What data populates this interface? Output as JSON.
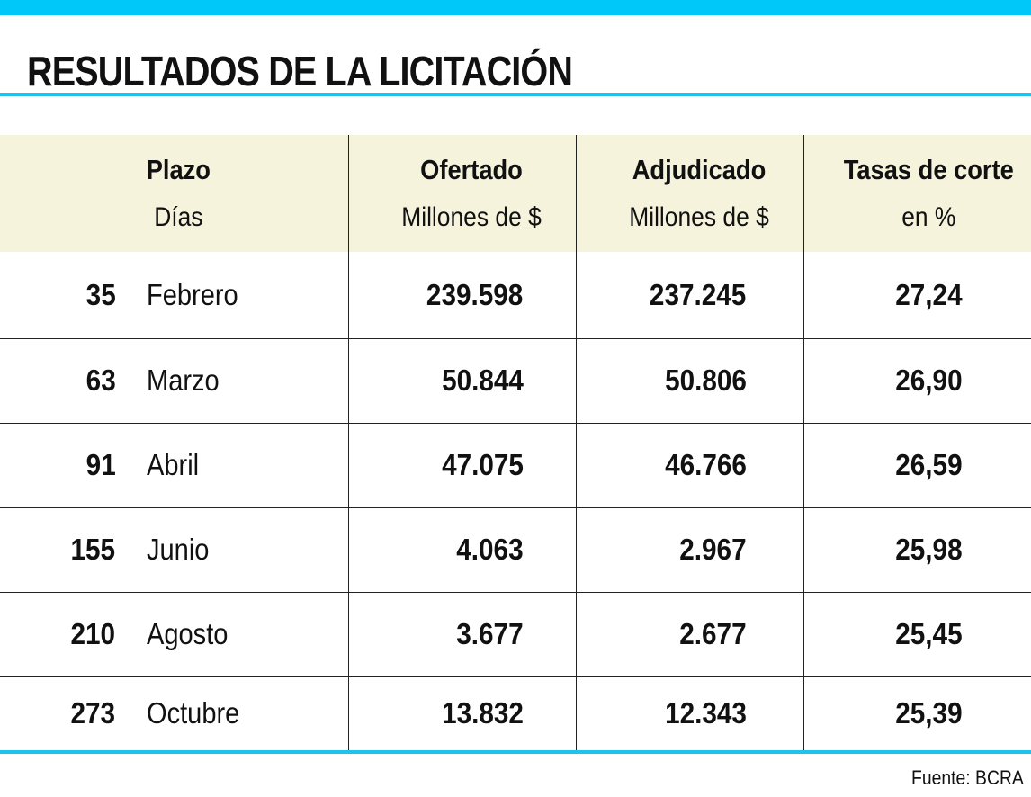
{
  "title": "RESULTADOS DE LA LICITACIÓN",
  "source": "Fuente: BCRA",
  "colors": {
    "accent": "#00c8f8",
    "header_bg": "#f5f3dc"
  },
  "chart_data": {
    "type": "table",
    "title": "RESULTADOS DE LA LICITACIÓN",
    "columns": [
      {
        "label": "Plazo",
        "sublabel": "Días"
      },
      {
        "label": "Ofertado",
        "sublabel": "Millones de $"
      },
      {
        "label": "Adjudicado",
        "sublabel": "Millones de $"
      },
      {
        "label": "Tasas de corte",
        "sublabel": "en %"
      }
    ],
    "rows": [
      {
        "dias": "35",
        "mes": "Febrero",
        "ofertado": "239.598",
        "adjudicado": "237.245",
        "tasa": "27,24"
      },
      {
        "dias": "63",
        "mes": "Marzo",
        "ofertado": "50.844",
        "adjudicado": "50.806",
        "tasa": "26,90"
      },
      {
        "dias": "91",
        "mes": "Abril",
        "ofertado": "47.075",
        "adjudicado": "46.766",
        "tasa": "26,59"
      },
      {
        "dias": "155",
        "mes": "Junio",
        "ofertado": "4.063",
        "adjudicado": "2.967",
        "tasa": "25,98"
      },
      {
        "dias": "210",
        "mes": "Agosto",
        "ofertado": "3.677",
        "adjudicado": "2.677",
        "tasa": "25,45"
      },
      {
        "dias": "273",
        "mes": "Octubre",
        "ofertado": "13.832",
        "adjudicado": "12.343",
        "tasa": "25,39"
      }
    ],
    "source": "Fuente: BCRA"
  }
}
